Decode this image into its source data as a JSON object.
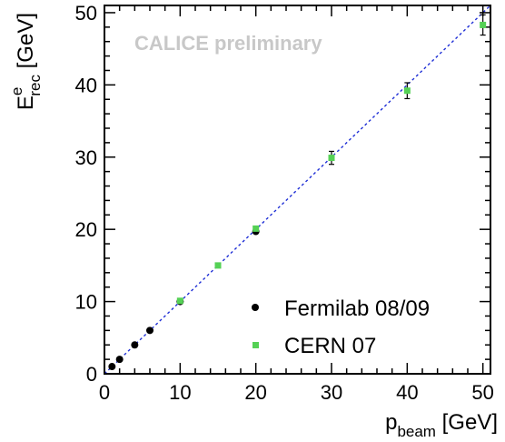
{
  "chart_data": {
    "type": "scatter",
    "annotation": "CALICE preliminary",
    "xlabel": {
      "main": "p",
      "sub": "beam",
      "unit": " [GeV]"
    },
    "ylabel": {
      "main": "E",
      "sup": "e",
      "sub": "rec",
      "unit": " [GeV]"
    },
    "xlim": [
      0,
      51
    ],
    "ylim": [
      0,
      51
    ],
    "xticks": [
      0,
      10,
      20,
      30,
      40,
      50
    ],
    "yticks": [
      0,
      10,
      20,
      30,
      40,
      50
    ],
    "xtick_labels": [
      "0",
      "10",
      "20",
      "30",
      "40",
      "50"
    ],
    "ytick_labels": [
      "0",
      "10",
      "20",
      "30",
      "40",
      "50"
    ],
    "grid": false,
    "legend_position": "bottom-right",
    "series": [
      {
        "name": "Fermilab 08/09",
        "marker": "circle",
        "color": "#000000",
        "points": [
          {
            "x": 1,
            "y": 1.0,
            "err": 0
          },
          {
            "x": 2,
            "y": 2.0,
            "err": 0
          },
          {
            "x": 4,
            "y": 4.0,
            "err": 0
          },
          {
            "x": 6,
            "y": 6.0,
            "err": 0
          },
          {
            "x": 10,
            "y": 10.0,
            "err": 0
          },
          {
            "x": 20,
            "y": 19.7,
            "err": 0
          }
        ]
      },
      {
        "name": "CERN 07",
        "marker": "square",
        "color": "#55d155",
        "points": [
          {
            "x": 10,
            "y": 10.1,
            "err": 0
          },
          {
            "x": 15,
            "y": 15.0,
            "err": 0
          },
          {
            "x": 20,
            "y": 20.1,
            "err": 0
          },
          {
            "x": 30,
            "y": 29.9,
            "err": 0.9
          },
          {
            "x": 40,
            "y": 39.2,
            "err": 1.1
          },
          {
            "x": 50,
            "y": 48.3,
            "err": 1.4
          }
        ]
      }
    ],
    "reference_line": {
      "style": "dashed",
      "color": "#1f2fd6",
      "from": [
        0,
        0
      ],
      "to": [
        51,
        51
      ]
    }
  }
}
